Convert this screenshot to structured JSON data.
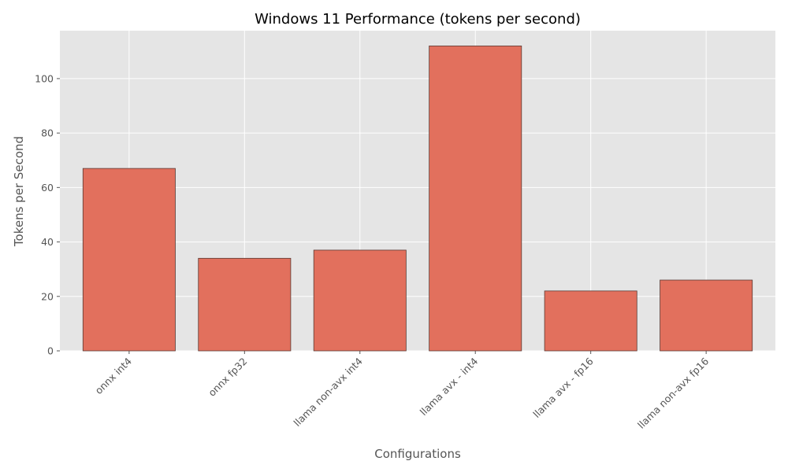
{
  "chart_data": {
    "type": "bar",
    "title": "Windows 11 Performance (tokens per second)",
    "xlabel": "Configurations",
    "ylabel": "Tokens per Second",
    "categories": [
      "onnx int4",
      "onnx fp32",
      "llama non-avx int4",
      "llama avx - int4",
      "llama avx - fp16",
      "llama non-avx fp16"
    ],
    "values": [
      67,
      34,
      37,
      112,
      22,
      26
    ],
    "ylim": [
      0,
      117.6
    ],
    "yticks": [
      0,
      20,
      40,
      60,
      80,
      100
    ],
    "grid": true,
    "bar_color": "#e2705d",
    "bar_edge_color": "#5a3a34",
    "plot_background": "#e5e5e5",
    "grid_color": "#ffffff"
  }
}
